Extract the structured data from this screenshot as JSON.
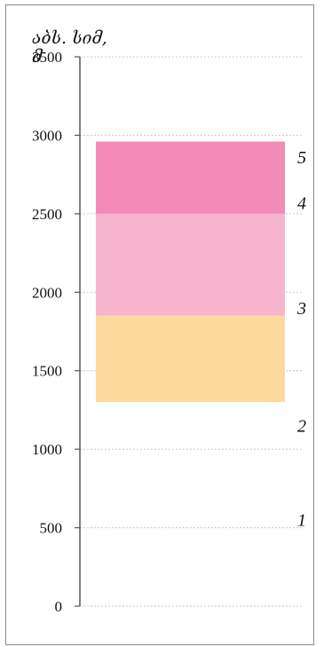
{
  "chart_data": {
    "type": "bar",
    "title": "აბს. სიმ,",
    "title_unit": "მ",
    "ylim": [
      0,
      3500
    ],
    "yticks": [
      0,
      500,
      1000,
      1500,
      2000,
      2500,
      3000,
      3500
    ],
    "grid": true,
    "stacked_band": [
      {
        "from": 1300,
        "to": 1850,
        "color": "#fdd9a0"
      },
      {
        "from": 1850,
        "to": 2500,
        "color": "#f6b4cf"
      },
      {
        "from": 2500,
        "to": 2960,
        "color": "#f28bb7"
      }
    ],
    "zone_labels": [
      {
        "label": "1",
        "y": 550
      },
      {
        "label": "2",
        "y": 1150
      },
      {
        "label": "3",
        "y": 1900
      },
      {
        "label": "4",
        "y": 2570
      },
      {
        "label": "5",
        "y": 2860
      }
    ]
  }
}
